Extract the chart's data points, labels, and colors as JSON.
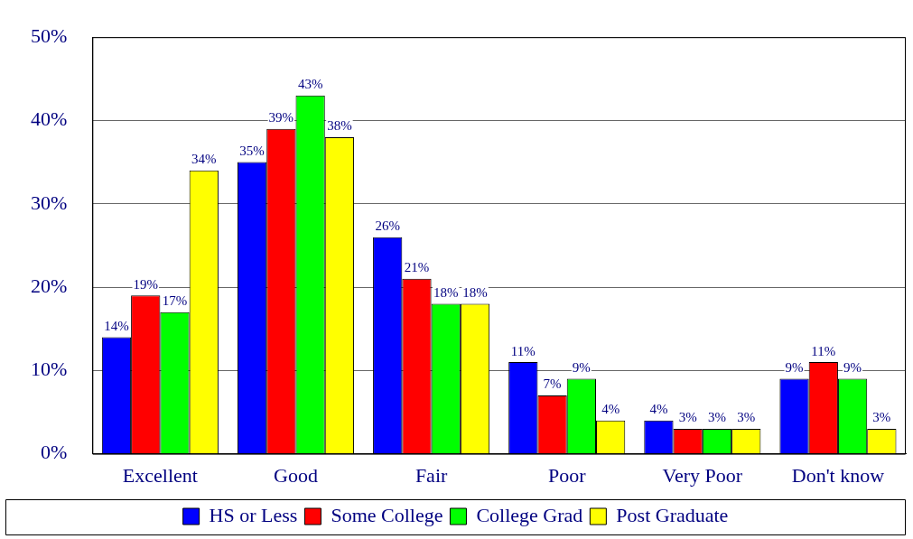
{
  "chart_data": {
    "type": "bar",
    "categories": [
      "Excellent",
      "Good",
      "Fair",
      "Poor",
      "Very Poor",
      "Don't know"
    ],
    "series": [
      {
        "name": "HS or Less",
        "color": "#0000ff",
        "values": [
          14,
          35,
          26,
          11,
          4,
          9
        ],
        "value_labels": [
          "14%",
          "35%",
          "26%",
          "11%",
          "4%",
          "9%"
        ]
      },
      {
        "name": "Some College",
        "color": "#ff0000",
        "values": [
          19,
          39,
          21,
          7,
          3,
          11
        ],
        "value_labels": [
          "19%",
          "39%",
          "21%",
          "7%",
          "3%",
          "11%"
        ]
      },
      {
        "name": "College Grad",
        "color": "#00ff00",
        "values": [
          17,
          43,
          18,
          9,
          3,
          9
        ],
        "value_labels": [
          "17%",
          "43%",
          "18%",
          "9%",
          "3%",
          "9%"
        ]
      },
      {
        "name": "Post Graduate",
        "color": "#ffff00",
        "values": [
          34,
          38,
          18,
          4,
          3,
          3
        ],
        "value_labels": [
          "34%",
          "38%",
          "18%",
          "4%",
          "3%",
          "3%"
        ]
      }
    ],
    "ylim": [
      0,
      50
    ],
    "yticks": [
      {
        "value": 0,
        "label": "0%"
      },
      {
        "value": 10,
        "label": "10%"
      },
      {
        "value": 20,
        "label": "20%"
      },
      {
        "value": 30,
        "label": "30%"
      },
      {
        "value": 40,
        "label": "40%"
      },
      {
        "value": 50,
        "label": "50%"
      }
    ],
    "grid": "y",
    "legend": "bottom"
  }
}
